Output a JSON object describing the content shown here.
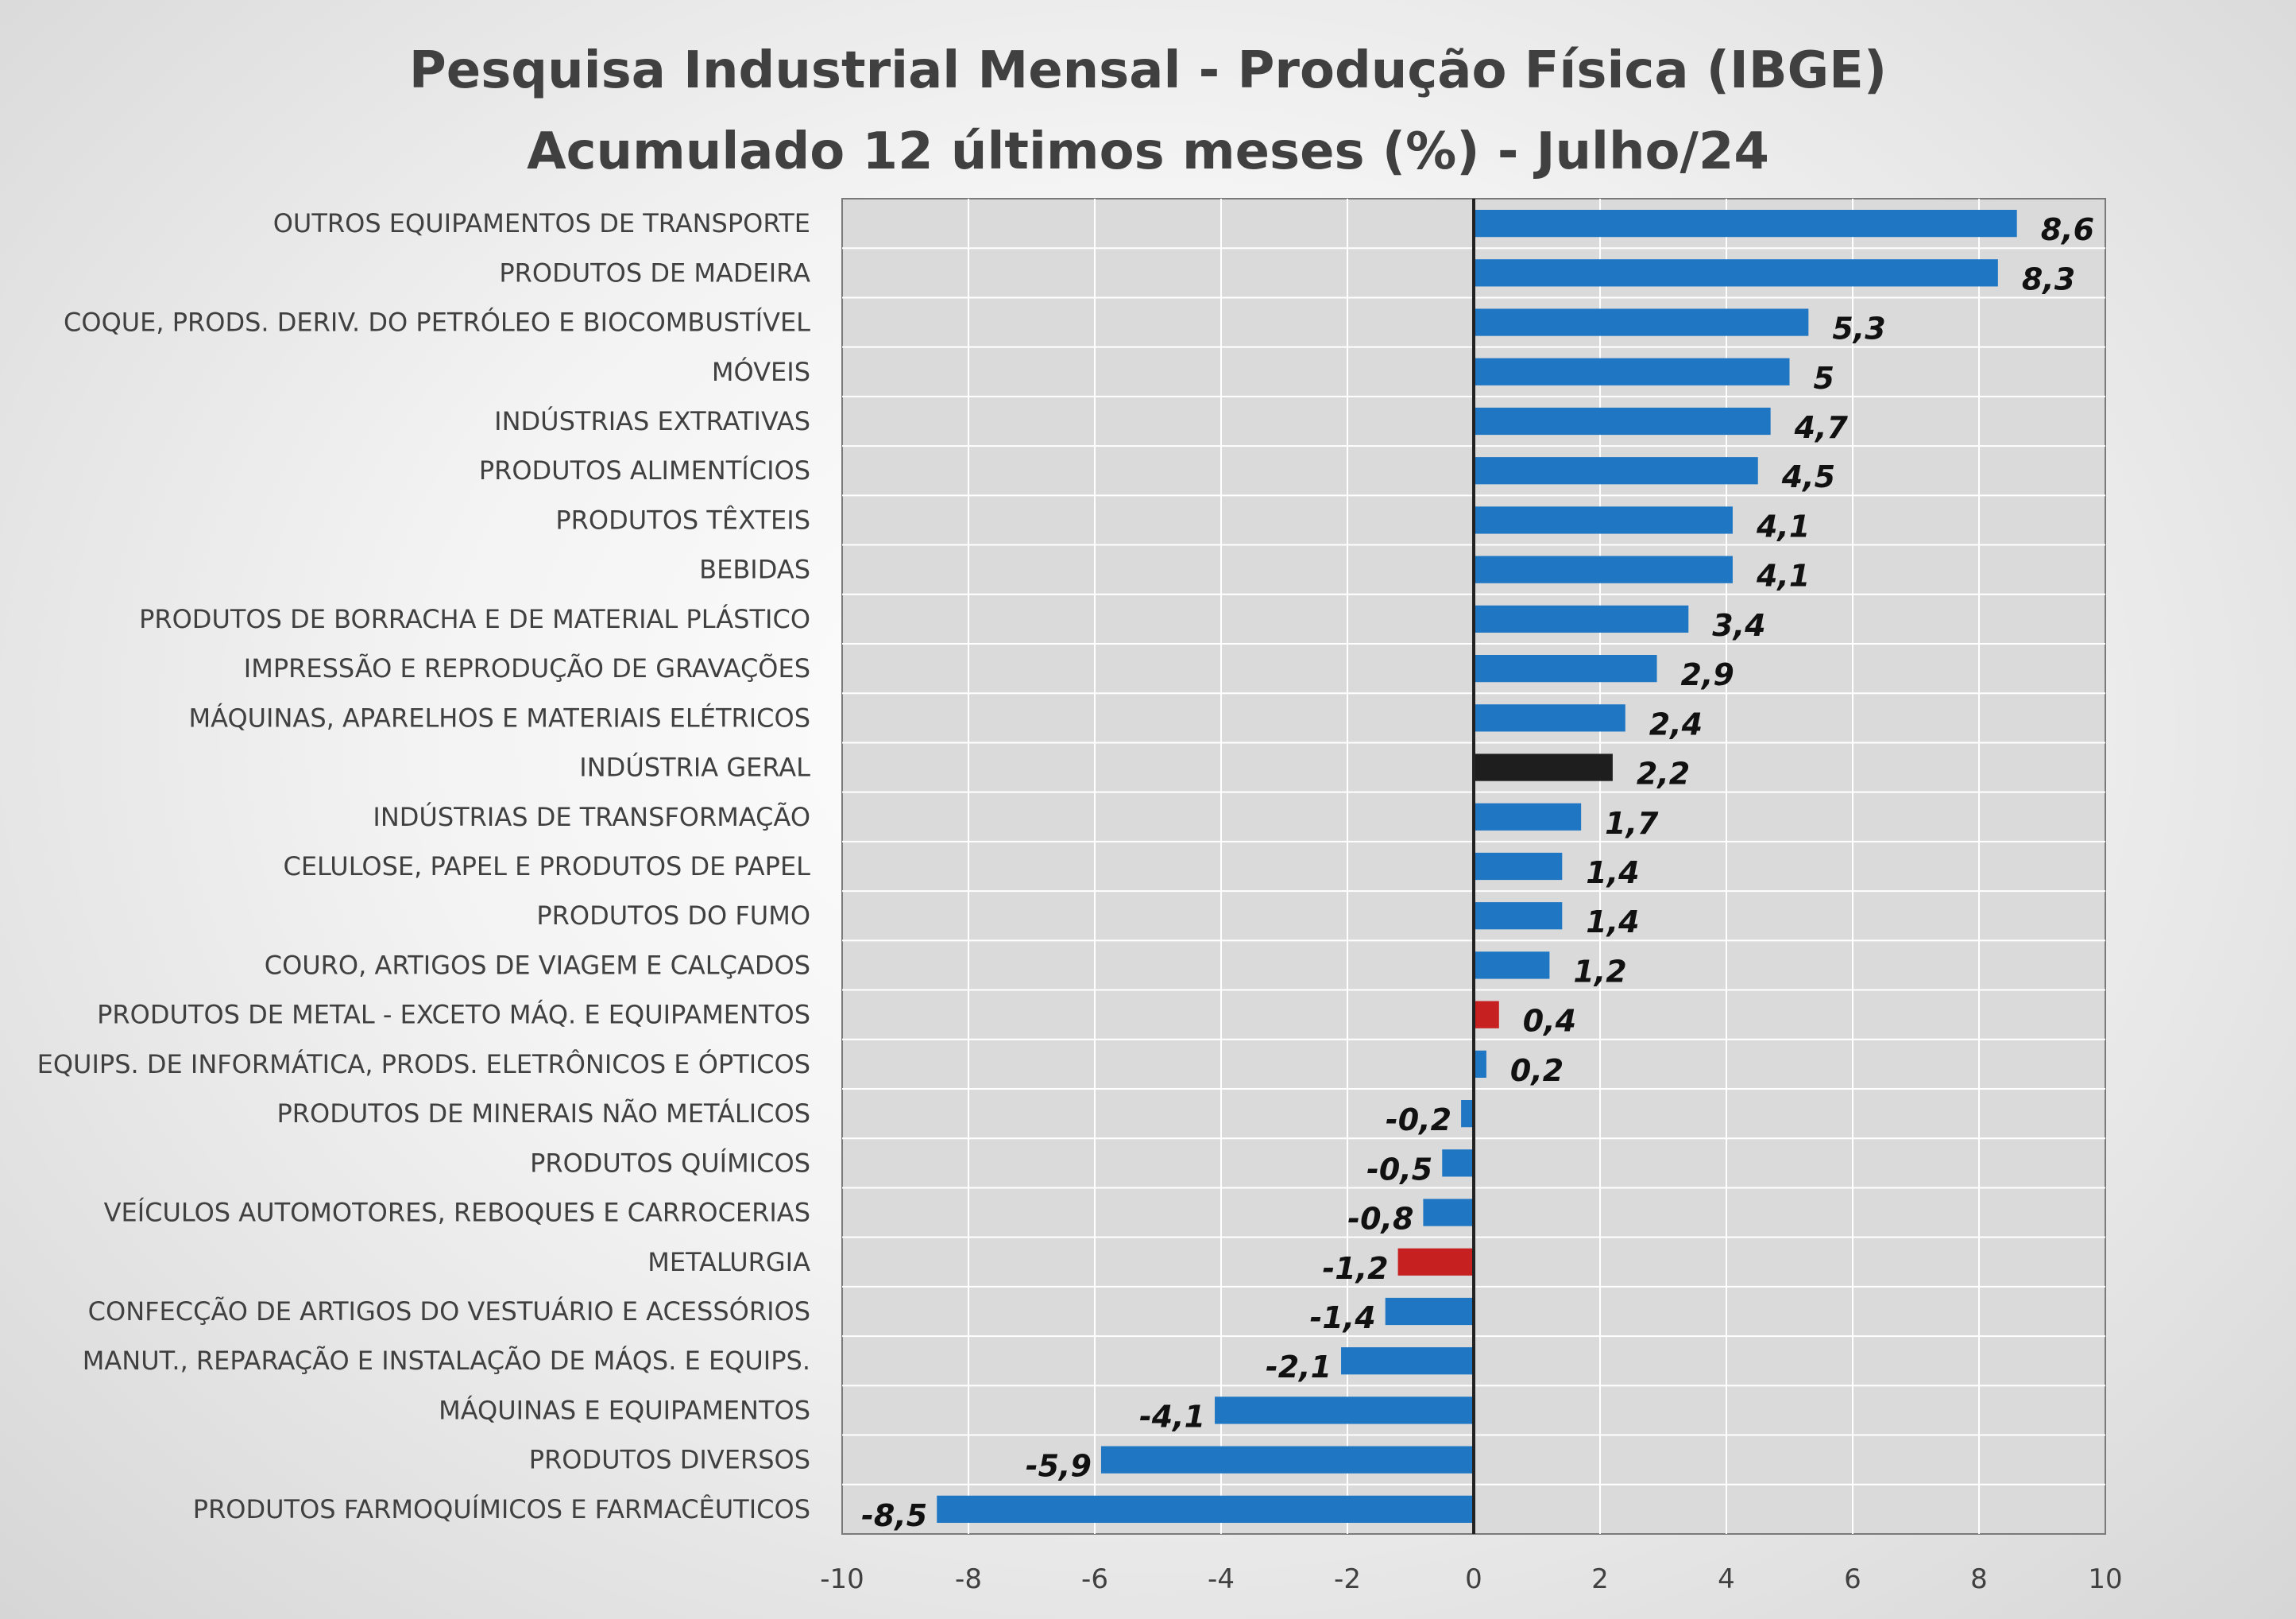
{
  "chart_data": {
    "type": "bar",
    "orientation": "horizontal",
    "title": [
      "Pesquisa Industrial Mensal - Produção Física (IBGE)",
      "Acumulado 12 últimos meses (%) - Julho/24"
    ],
    "xlim": [
      -10,
      10
    ],
    "xticks": [
      -10,
      -8,
      -6,
      -4,
      -2,
      0,
      2,
      4,
      6,
      8,
      10
    ],
    "grid": true,
    "legend": "none",
    "colors": {
      "default": "#1f77c4",
      "highlight_total": "#1e1e1e",
      "highlight_negative": "#c62020",
      "grid": "#ffffff",
      "zero_line": "#222222"
    },
    "categories": [
      "OUTROS EQUIPAMENTOS DE TRANSPORTE",
      "PRODUTOS DE MADEIRA",
      "COQUE, PRODS. DERIV. DO PETRÓLEO E BIOCOMBUSTÍVEL",
      "MÓVEIS",
      "INDÚSTRIAS EXTRATIVAS",
      "PRODUTOS ALIMENTÍCIOS",
      "PRODUTOS TÊXTEIS",
      "BEBIDAS",
      "PRODUTOS DE BORRACHA E DE MATERIAL PLÁSTICO",
      "IMPRESSÃO E REPRODUÇÃO DE GRAVAÇÕES",
      "MÁQUINAS, APARELHOS E MATERIAIS ELÉTRICOS",
      "INDÚSTRIA GERAL",
      "INDÚSTRIAS DE TRANSFORMAÇÃO",
      "CELULOSE, PAPEL E PRODUTOS DE PAPEL",
      "PRODUTOS DO FUMO",
      "COURO, ARTIGOS DE VIAGEM E CALÇADOS",
      "PRODUTOS DE METAL - EXCETO MÁQ. E EQUIPAMENTOS",
      "EQUIPS. DE INFORMÁTICA, PRODS. ELETRÔNICOS E ÓPTICOS",
      "PRODUTOS DE MINERAIS NÃO METÁLICOS",
      "PRODUTOS QUÍMICOS",
      "VEÍCULOS AUTOMOTORES, REBOQUES E CARROCERIAS",
      "METALURGIA",
      "CONFECÇÃO DE ARTIGOS DO VESTUÁRIO E ACESSÓRIOS",
      "MANUT., REPARAÇÃO E INSTALAÇÃO DE MÁQS. E EQUIPS.",
      "MÁQUINAS E EQUIPAMENTOS",
      "PRODUTOS DIVERSOS",
      "PRODUTOS FARMOQUÍMICOS E FARMACÊUTICOS"
    ],
    "values": [
      8.6,
      8.3,
      5.3,
      5,
      4.7,
      4.5,
      4.1,
      4.1,
      3.4,
      2.9,
      2.4,
      2.2,
      1.7,
      1.4,
      1.4,
      1.2,
      0.4,
      0.2,
      -0.2,
      -0.5,
      -0.8,
      -1.2,
      -1.4,
      -2.1,
      -4.1,
      -5.9,
      -8.5
    ],
    "value_labels": [
      "8,6",
      "8,3",
      "5,3",
      "5",
      "4,7",
      "4,5",
      "4,1",
      "4,1",
      "3,4",
      "2,9",
      "2,4",
      "2,2",
      "1,7",
      "1,4",
      "1,4",
      "1,2",
      "0,4",
      "0,2",
      "-0,2",
      "-0,5",
      "-0,8",
      "-1,2",
      "-1,4",
      "-2,1",
      "-4,1",
      "-5,9",
      "-8,5"
    ],
    "bar_colors": [
      "default",
      "default",
      "default",
      "default",
      "default",
      "default",
      "default",
      "default",
      "default",
      "default",
      "default",
      "highlight_total",
      "default",
      "default",
      "default",
      "default",
      "highlight_negative",
      "default",
      "default",
      "default",
      "default",
      "highlight_negative",
      "default",
      "default",
      "default",
      "default",
      "default"
    ]
  }
}
